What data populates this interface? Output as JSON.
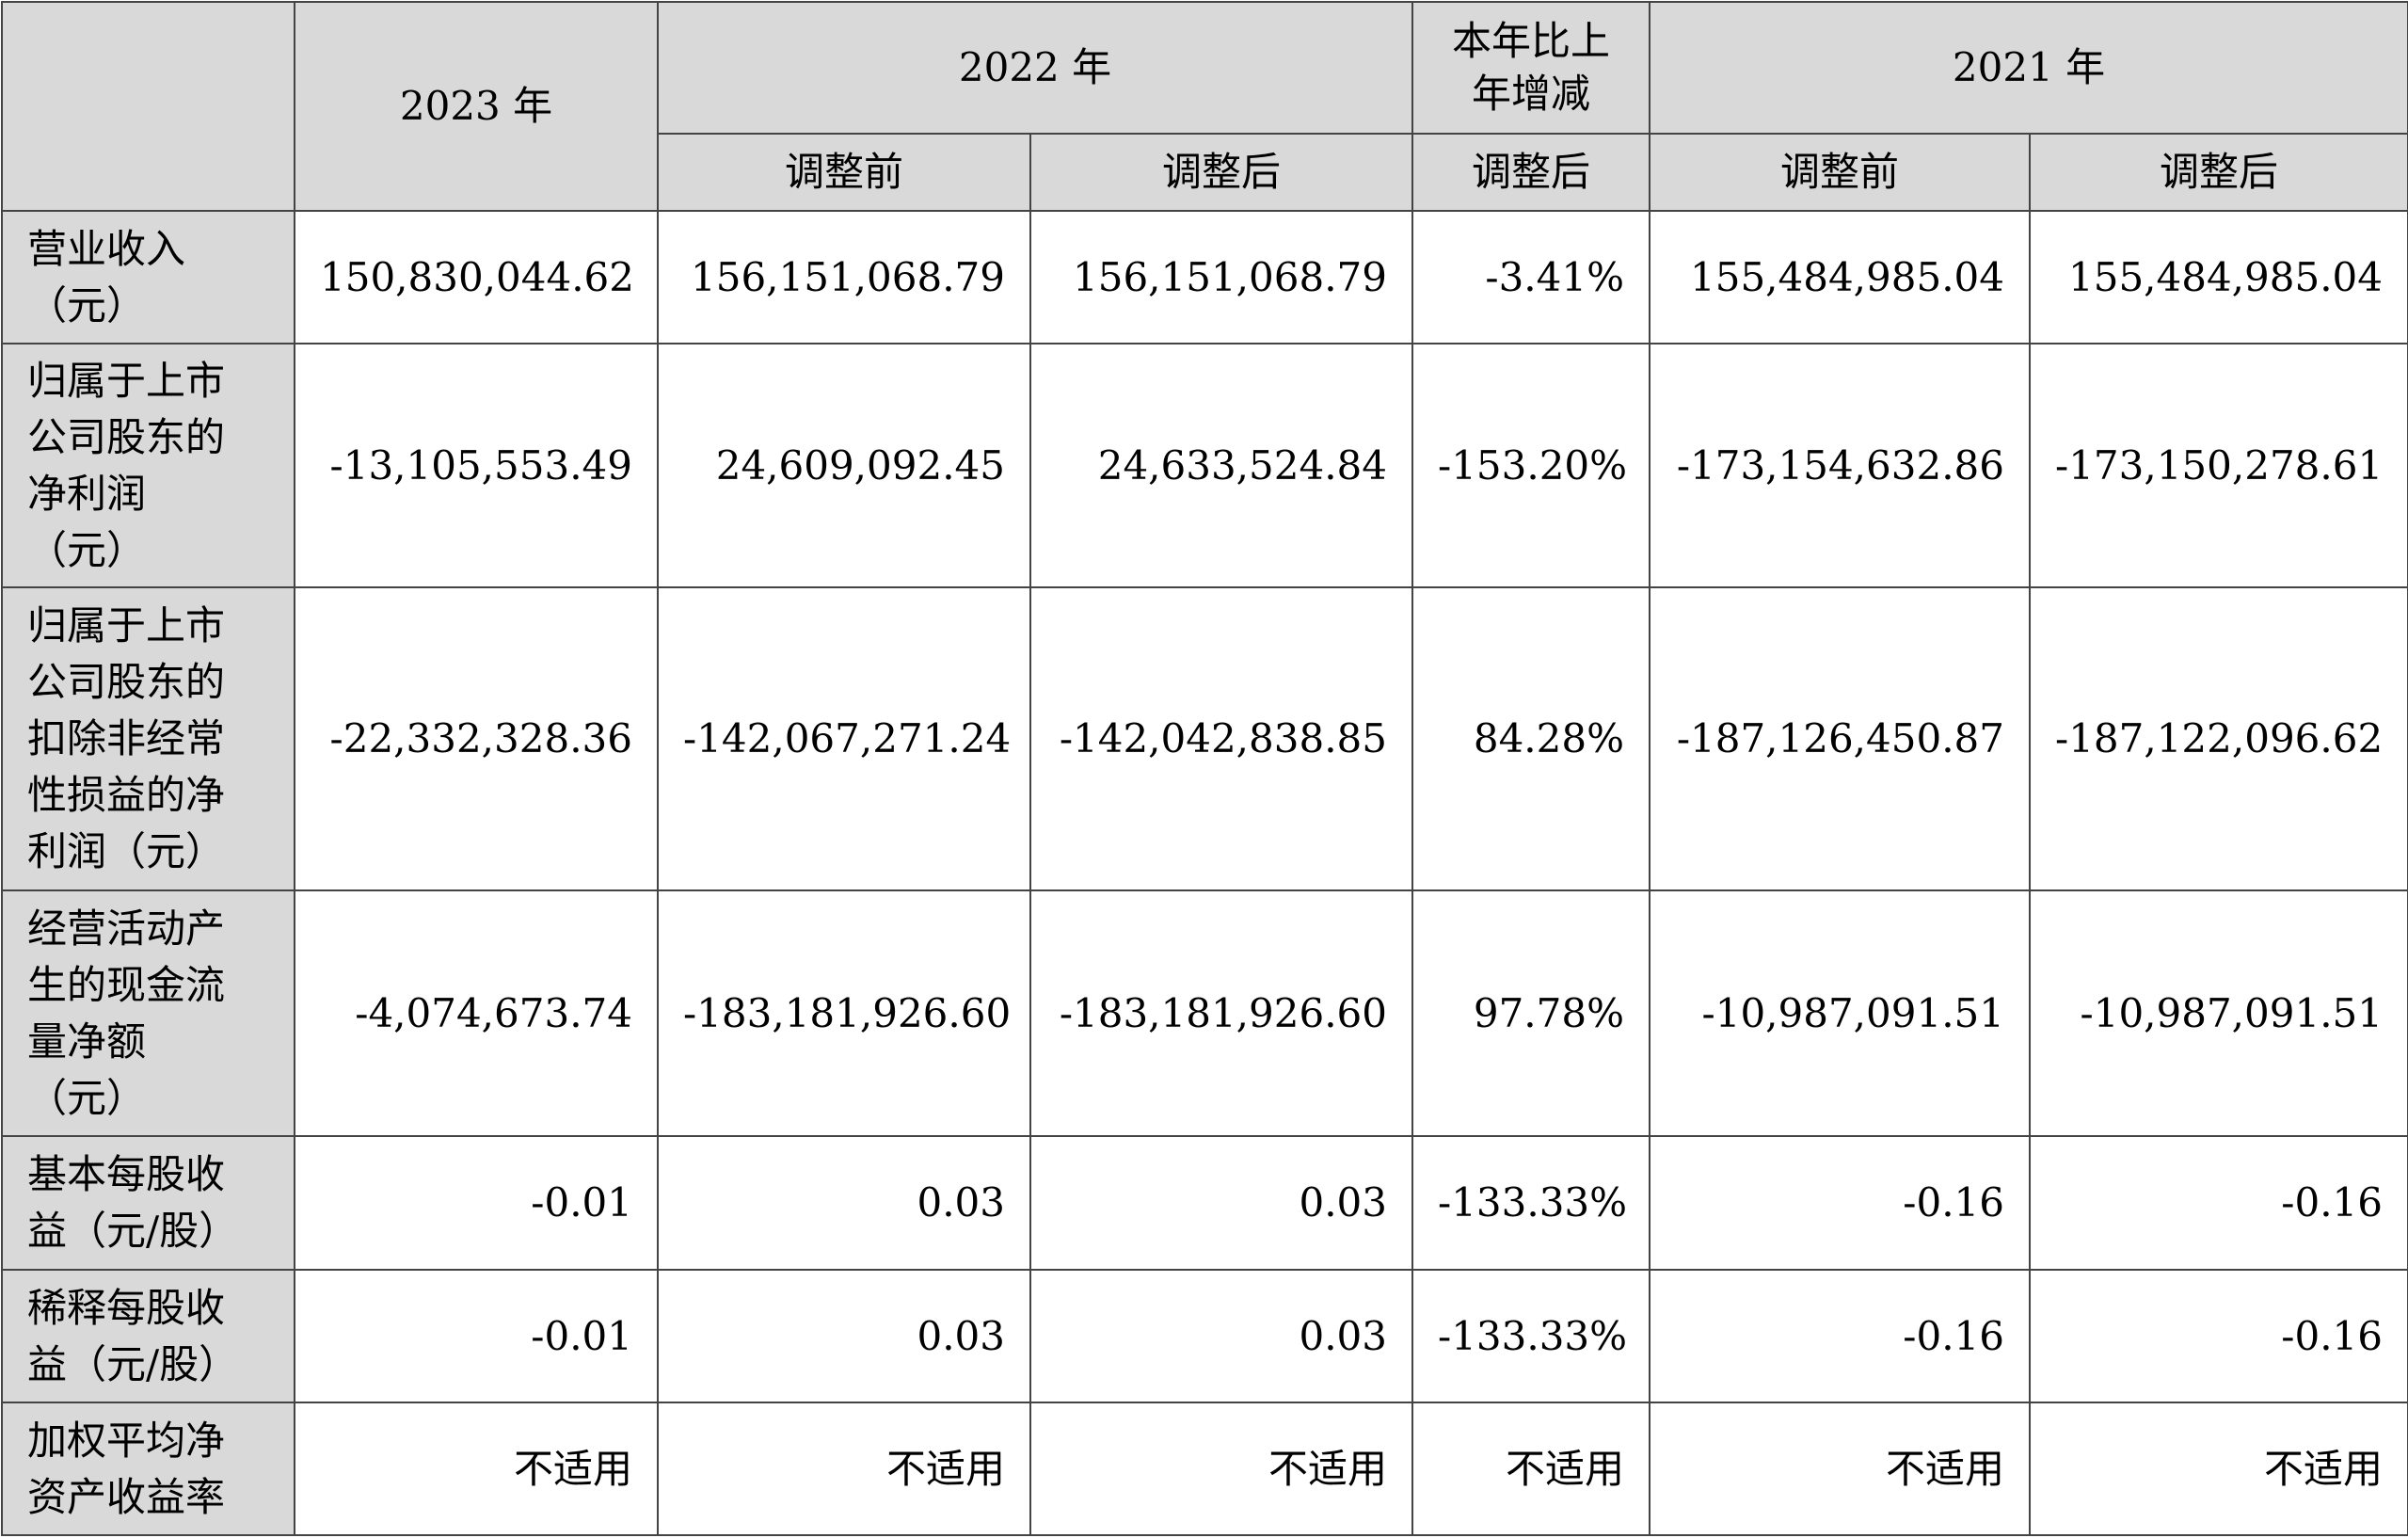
{
  "header": {
    "col_2023": "2023 年",
    "col_2022": "2022 年",
    "col_change": "本年比上\n年增减",
    "col_2021": "2021 年",
    "sub_before": "调整前",
    "sub_after": "调整后",
    "sub_change_after": "调整后"
  },
  "rows": [
    {
      "label": "营业收入\n（元）",
      "v2023": "150,830,044.62",
      "v2022_before": "156,151,068.79",
      "v2022_after": "156,151,068.79",
      "change": "-3.41%",
      "v2021_before": "155,484,985.04",
      "v2021_after": "155,484,985.04"
    },
    {
      "label": "归属于上市\n公司股东的\n净利润\n（元）",
      "v2023": "-13,105,553.49",
      "v2022_before": "24,609,092.45",
      "v2022_after": "24,633,524.84",
      "change": "-153.20%",
      "v2021_before": "-173,154,632.86",
      "v2021_after": "-173,150,278.61"
    },
    {
      "label": "归属于上市\n公司股东的\n扣除非经常\n性损益的净\n利润（元）",
      "v2023": "-22,332,328.36",
      "v2022_before": "-142,067,271.24",
      "v2022_after": "-142,042,838.85",
      "change": "84.28%",
      "v2021_before": "-187,126,450.87",
      "v2021_after": "-187,122,096.62"
    },
    {
      "label": "经营活动产\n生的现金流\n量净额\n（元）",
      "v2023": "-4,074,673.74",
      "v2022_before": "-183,181,926.60",
      "v2022_after": "-183,181,926.60",
      "change": "97.78%",
      "v2021_before": "-10,987,091.51",
      "v2021_after": "-10,987,091.51"
    },
    {
      "label": "基本每股收\n益（元/股）",
      "v2023": "-0.01",
      "v2022_before": "0.03",
      "v2022_after": "0.03",
      "change": "-133.33%",
      "v2021_before": "-0.16",
      "v2021_after": "-0.16"
    },
    {
      "label": "稀释每股收\n益（元/股）",
      "v2023": "-0.01",
      "v2022_before": "0.03",
      "v2022_after": "0.03",
      "change": "-133.33%",
      "v2021_before": "-0.16",
      "v2021_after": "-0.16"
    },
    {
      "label": "加权平均净\n资产收益率",
      "v2023": "不适用",
      "v2022_before": "不适用",
      "v2022_after": "不适用",
      "change": "不适用",
      "v2021_before": "不适用",
      "v2021_after": "不适用"
    }
  ]
}
